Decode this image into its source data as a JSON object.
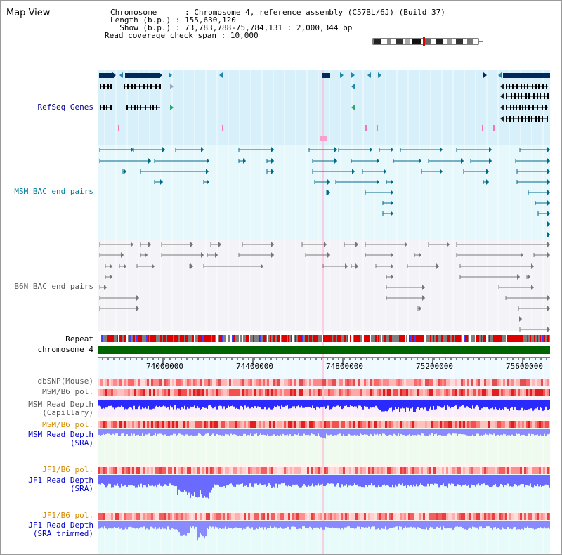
{
  "title": "Map View",
  "info": {
    "chromosome_key": "Chromosome",
    "chromosome_val": "Chromosome 4, reference assembly (C57BL/6J) (Build 37)",
    "length_key": "Length (b.p.)",
    "length_val": "155,630,120",
    "show_key": "Show (b.p.)",
    "show_val": "73,783,788-75,784,131 : 2,000,344 bp",
    "coverage_key": "Read coverage check span",
    "coverage_val": "10,000"
  },
  "tracks": {
    "refseq": "RefSeq Genes",
    "msm_bac": "MSM BAC end pairs",
    "b6n_bac": "B6N BAC end pairs",
    "repeat": "Repeat",
    "chromosome": "chromosome 4",
    "dbsnp": "dbSNP(Mouse)",
    "msm_b6_pol": "MSM/B6 pol.",
    "msm_depth_cap_1": "MSM Read Depth",
    "msm_depth_cap_2": "(Capillary)",
    "msm_b6_pol2": "MSM/B6 pol.",
    "msm_depth_sra_1": "MSM Read Depth",
    "msm_depth_sra_2": "(SRA)",
    "jf1_b6_pol": "JF1/B6 pol.",
    "jf1_depth_sra_1": "JF1 Read Depth",
    "jf1_depth_sra_2": "(SRA)",
    "jf1_b6_pol2": "JF1/B6 pol.",
    "jf1_depth_trim_1": "JF1 Read Depth",
    "jf1_depth_trim_2": "(SRA trimmed)"
  },
  "axis": {
    "ticks": [
      "74000000",
      "74400000",
      "74800000",
      "75200000",
      "75600000"
    ]
  },
  "colors": {
    "refseq_bg": "#d7f0fa",
    "msm_bg": "#e6f8fb",
    "b6n_bg": "#f4f4f8",
    "chrom_bar": "#006400",
    "depth_blue": "#3030ff",
    "depth_light": "#8888ff"
  }
}
